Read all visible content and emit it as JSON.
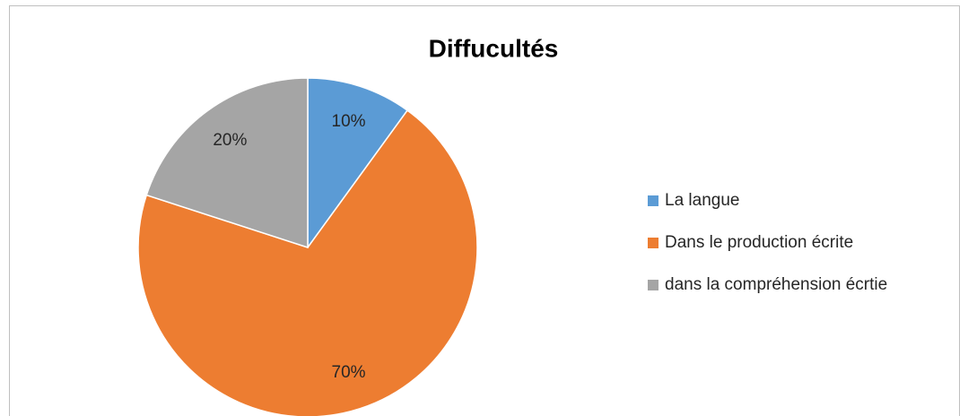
{
  "chart_data": {
    "type": "pie",
    "title": "Diffucultés",
    "categories": [
      "La langue",
      "Dans le production écrite",
      "dans la compréhension écrtie"
    ],
    "values": [
      10,
      70,
      20
    ],
    "value_labels": [
      "10%",
      "70%",
      "20%"
    ],
    "colors": [
      "#5b9bd5",
      "#ed7d31",
      "#a5a5a5"
    ],
    "legend": "right"
  }
}
